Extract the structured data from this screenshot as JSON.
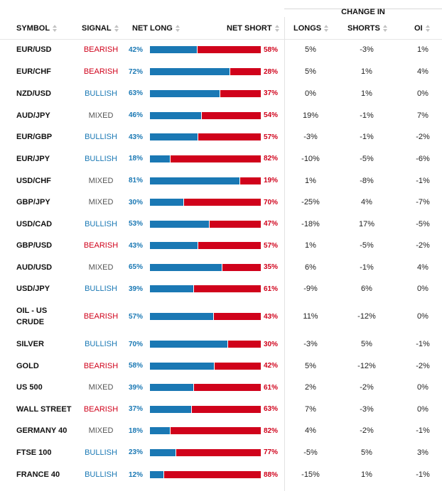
{
  "header": {
    "change_in": "CHANGE IN",
    "columns": {
      "symbol": "SYMBOL",
      "signal": "SIGNAL",
      "net_long": "NET LONG",
      "net_short": "NET SHORT",
      "longs": "LONGS",
      "shorts": "SHORTS",
      "oi": "OI"
    }
  },
  "colors": {
    "long": "#1a78b4",
    "short": "#d0021b",
    "bearish": "#d0021b",
    "bullish": "#1a78b4",
    "mixed": "#555555"
  },
  "rows": [
    {
      "symbol": "EUR/USD",
      "signal": "BEARISH",
      "net_long": "42%",
      "net_short": "58%",
      "long_value": 42,
      "longs": "5%",
      "shorts": "-3%",
      "oi": "1%"
    },
    {
      "symbol": "EUR/CHF",
      "signal": "BEARISH",
      "net_long": "72%",
      "net_short": "28%",
      "long_value": 72,
      "longs": "5%",
      "shorts": "1%",
      "oi": "4%"
    },
    {
      "symbol": "NZD/USD",
      "signal": "BULLISH",
      "net_long": "63%",
      "net_short": "37%",
      "long_value": 63,
      "longs": "0%",
      "shorts": "1%",
      "oi": "0%"
    },
    {
      "symbol": "AUD/JPY",
      "signal": "MIXED",
      "net_long": "46%",
      "net_short": "54%",
      "long_value": 46,
      "longs": "19%",
      "shorts": "-1%",
      "oi": "7%"
    },
    {
      "symbol": "EUR/GBP",
      "signal": "BULLISH",
      "net_long": "43%",
      "net_short": "57%",
      "long_value": 43,
      "longs": "-3%",
      "shorts": "-1%",
      "oi": "-2%"
    },
    {
      "symbol": "EUR/JPY",
      "signal": "BULLISH",
      "net_long": "18%",
      "net_short": "82%",
      "long_value": 18,
      "longs": "-10%",
      "shorts": "-5%",
      "oi": "-6%"
    },
    {
      "symbol": "USD/CHF",
      "signal": "MIXED",
      "net_long": "81%",
      "net_short": "19%",
      "long_value": 81,
      "longs": "1%",
      "shorts": "-8%",
      "oi": "-1%"
    },
    {
      "symbol": "GBP/JPY",
      "signal": "MIXED",
      "net_long": "30%",
      "net_short": "70%",
      "long_value": 30,
      "longs": "-25%",
      "shorts": "4%",
      "oi": "-7%"
    },
    {
      "symbol": "USD/CAD",
      "signal": "BULLISH",
      "net_long": "53%",
      "net_short": "47%",
      "long_value": 53,
      "longs": "-18%",
      "shorts": "17%",
      "oi": "-5%"
    },
    {
      "symbol": "GBP/USD",
      "signal": "BEARISH",
      "net_long": "43%",
      "net_short": "57%",
      "long_value": 43,
      "longs": "1%",
      "shorts": "-5%",
      "oi": "-2%"
    },
    {
      "symbol": "AUD/USD",
      "signal": "MIXED",
      "net_long": "65%",
      "net_short": "35%",
      "long_value": 65,
      "longs": "6%",
      "shorts": "-1%",
      "oi": "4%"
    },
    {
      "symbol": "USD/JPY",
      "signal": "BULLISH",
      "net_long": "39%",
      "net_short": "61%",
      "long_value": 39,
      "longs": "-9%",
      "shorts": "6%",
      "oi": "0%"
    },
    {
      "symbol": "OIL - US CRUDE",
      "signal": "BEARISH",
      "net_long": "57%",
      "net_short": "43%",
      "long_value": 57,
      "longs": "11%",
      "shorts": "-12%",
      "oi": "0%"
    },
    {
      "symbol": "SILVER",
      "signal": "BULLISH",
      "net_long": "70%",
      "net_short": "30%",
      "long_value": 70,
      "longs": "-3%",
      "shorts": "5%",
      "oi": "-1%"
    },
    {
      "symbol": "GOLD",
      "signal": "BEARISH",
      "net_long": "58%",
      "net_short": "42%",
      "long_value": 58,
      "longs": "5%",
      "shorts": "-12%",
      "oi": "-2%"
    },
    {
      "symbol": "US 500",
      "signal": "MIXED",
      "net_long": "39%",
      "net_short": "61%",
      "long_value": 39,
      "longs": "2%",
      "shorts": "-2%",
      "oi": "0%"
    },
    {
      "symbol": "WALL STREET",
      "signal": "BEARISH",
      "net_long": "37%",
      "net_short": "63%",
      "long_value": 37,
      "longs": "7%",
      "shorts": "-3%",
      "oi": "0%"
    },
    {
      "symbol": "GERMANY 40",
      "signal": "MIXED",
      "net_long": "18%",
      "net_short": "82%",
      "long_value": 18,
      "longs": "4%",
      "shorts": "-2%",
      "oi": "-1%"
    },
    {
      "symbol": "FTSE 100",
      "signal": "BULLISH",
      "net_long": "23%",
      "net_short": "77%",
      "long_value": 23,
      "longs": "-5%",
      "shorts": "5%",
      "oi": "3%"
    },
    {
      "symbol": "FRANCE 40",
      "signal": "BULLISH",
      "net_long": "12%",
      "net_short": "88%",
      "long_value": 12,
      "longs": "-15%",
      "shorts": "1%",
      "oi": "-1%"
    }
  ]
}
